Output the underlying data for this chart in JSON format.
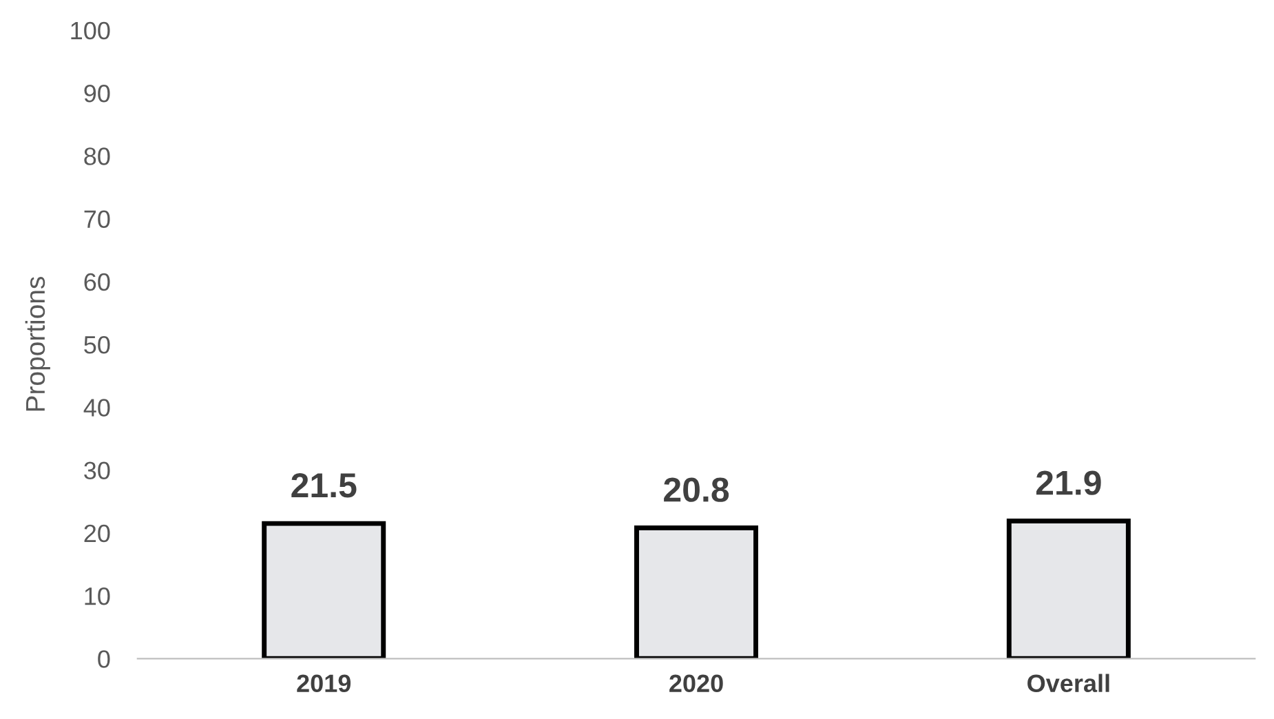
{
  "chart_data": {
    "type": "bar",
    "ylabel": "Proportions",
    "categories": [
      "2019",
      "2020",
      "Overall"
    ],
    "values": [
      21.5,
      20.8,
      21.9
    ],
    "color": "#e6e7ea",
    "ylim": [
      0,
      100
    ],
    "yticks": [
      0,
      10,
      20,
      30,
      40,
      50,
      60,
      70,
      80,
      90,
      100
    ],
    "grid": false,
    "data_labels": true
  }
}
